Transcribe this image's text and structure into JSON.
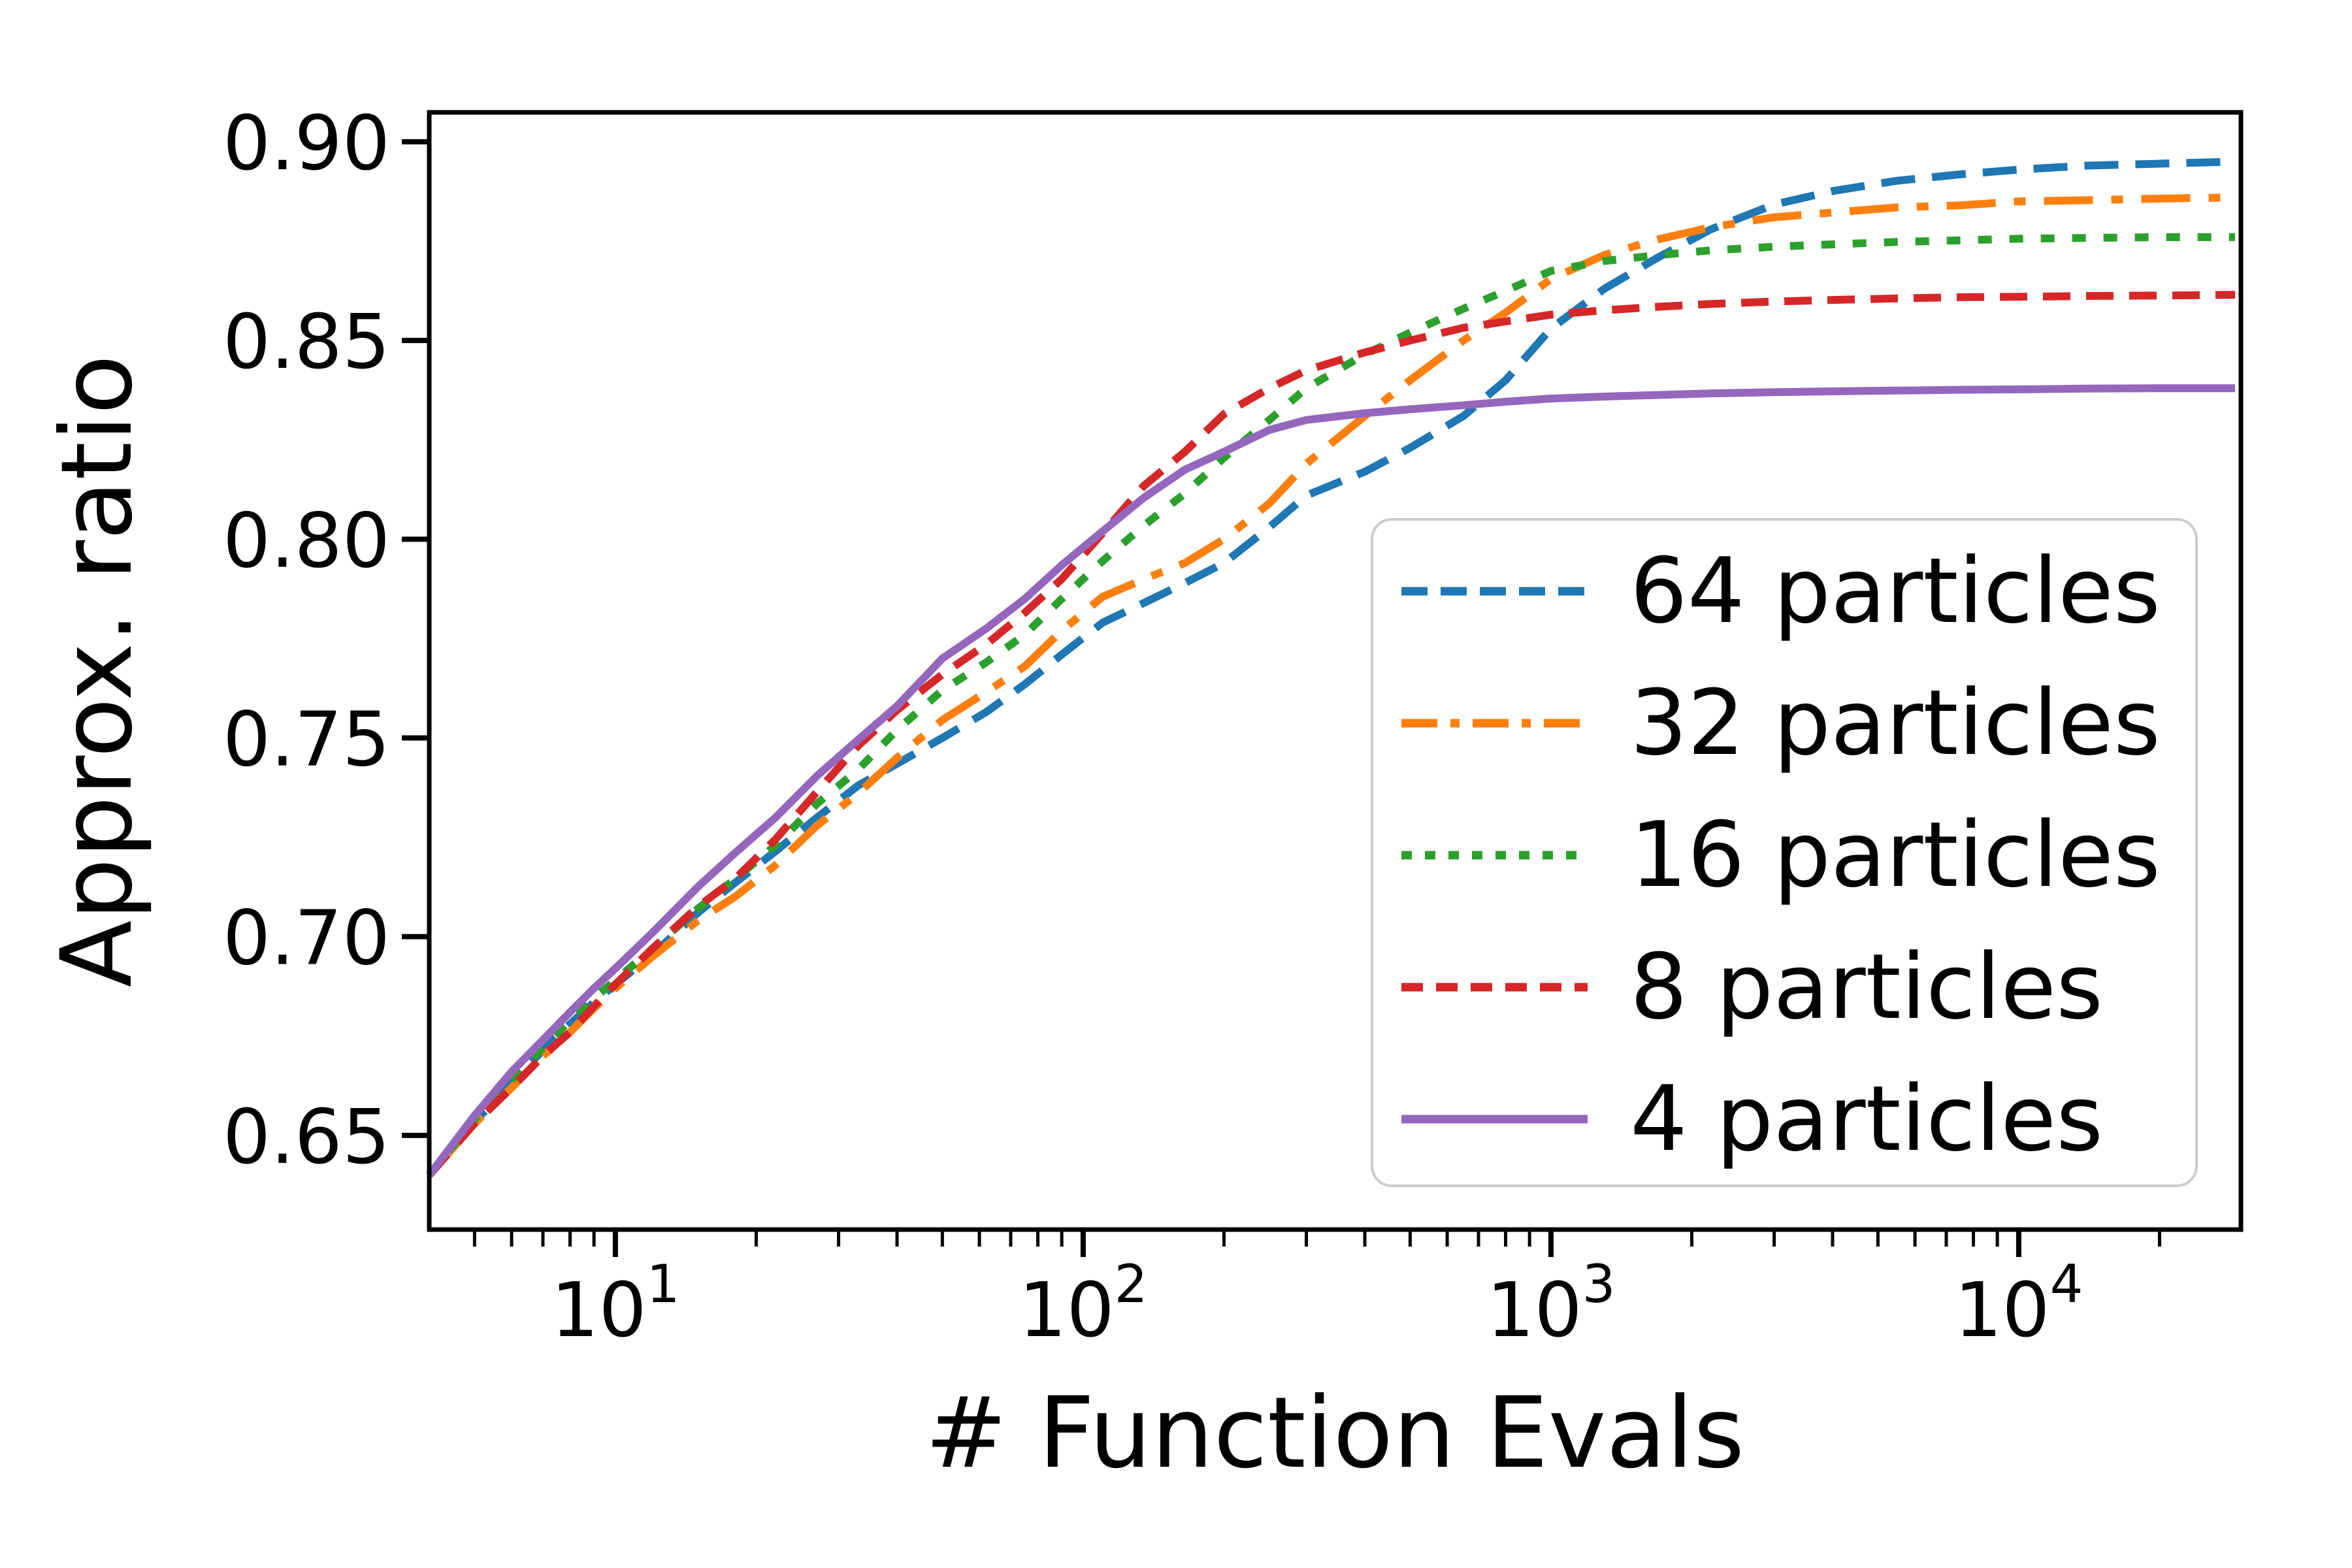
{
  "chart_data": {
    "type": "line",
    "title": "",
    "xlabel": "# Function Evals",
    "ylabel": "Approx. ratio",
    "x_scale": "log",
    "grid": false,
    "legend_position": "lower right inside",
    "xlim": [
      4,
      29854
    ],
    "ylim": [
      0.6263,
      0.9074
    ],
    "y_ticks": [
      {
        "value": 0.9,
        "label": "0.90"
      },
      {
        "value": 0.85,
        "label": "0.85"
      },
      {
        "value": 0.8,
        "label": "0.80"
      },
      {
        "value": 0.75,
        "label": "0.75"
      },
      {
        "value": 0.7,
        "label": "0.70"
      },
      {
        "value": 0.65,
        "label": "0.65"
      }
    ],
    "x_major_ticks": [
      {
        "value": 10,
        "base": "10",
        "exp": "1"
      },
      {
        "value": 100,
        "base": "10",
        "exp": "2"
      },
      {
        "value": 1000,
        "base": "10",
        "exp": "3"
      },
      {
        "value": 10000,
        "base": "10",
        "exp": "4"
      }
    ],
    "x_minor_ticks": [
      5,
      6,
      7,
      8,
      9,
      20,
      30,
      40,
      50,
      60,
      70,
      80,
      90,
      200,
      300,
      400,
      500,
      600,
      700,
      800,
      900,
      2000,
      3000,
      4000,
      5000,
      6000,
      7000,
      8000,
      9000,
      20000
    ],
    "x": [
      4,
      5,
      6,
      7,
      8,
      9,
      10,
      12,
      15,
      18,
      22,
      27,
      33,
      40,
      50,
      62,
      75,
      90,
      110,
      135,
      165,
      200,
      250,
      300,
      400,
      500,
      650,
      800,
      1000,
      1300,
      1700,
      2200,
      3000,
      4000,
      5500,
      7500,
      10000,
      14000,
      20000,
      29000
    ],
    "series": [
      {
        "name": "64 particles",
        "color": "#1f77b4",
        "style": "dashed",
        "dash": "52 26",
        "legend_dash": "40 20",
        "end_value": 0.895,
        "values": [
          0.64,
          0.6535,
          0.663,
          0.6715,
          0.678,
          0.6835,
          0.688,
          0.6955,
          0.706,
          0.7135,
          0.7215,
          0.73,
          0.738,
          0.7435,
          0.75,
          0.7565,
          0.7635,
          0.771,
          0.779,
          0.784,
          0.789,
          0.794,
          0.803,
          0.811,
          0.817,
          0.823,
          0.831,
          0.84,
          0.853,
          0.863,
          0.871,
          0.878,
          0.8842,
          0.8876,
          0.8902,
          0.8918,
          0.893,
          0.894,
          0.8945,
          0.895
        ]
      },
      {
        "name": "32 particles",
        "color": "#ff7f0e",
        "style": "dashdot",
        "dash": "75 28 18 28",
        "legend_dash": "55 20 14 20",
        "end_value": 0.886,
        "values": [
          0.64,
          0.653,
          0.662,
          0.67,
          0.676,
          0.682,
          0.687,
          0.695,
          0.704,
          0.71,
          0.718,
          0.728,
          0.736,
          0.745,
          0.7545,
          0.7615,
          0.768,
          0.777,
          0.7855,
          0.79,
          0.794,
          0.8,
          0.809,
          0.819,
          0.831,
          0.84,
          0.85,
          0.857,
          0.8655,
          0.8715,
          0.8755,
          0.8785,
          0.881,
          0.8822,
          0.8835,
          0.884,
          0.885,
          0.8853,
          0.8857,
          0.886
        ]
      },
      {
        "name": "16 particles",
        "color": "#2ca02c",
        "style": "dotted",
        "dash": "21 27",
        "legend_dash": "16 20",
        "end_value": 0.876,
        "values": [
          0.64,
          0.654,
          0.664,
          0.672,
          0.679,
          0.6845,
          0.689,
          0.697,
          0.707,
          0.7145,
          0.723,
          0.7335,
          0.742,
          0.752,
          0.762,
          0.769,
          0.776,
          0.785,
          0.7945,
          0.8035,
          0.8115,
          0.8205,
          0.83,
          0.838,
          0.8465,
          0.852,
          0.858,
          0.8625,
          0.8675,
          0.87,
          0.8715,
          0.8727,
          0.8736,
          0.8742,
          0.8748,
          0.8752,
          0.8756,
          0.8758,
          0.876,
          0.876
        ]
      },
      {
        "name": "8 particles",
        "color": "#d62728",
        "style": "dashed",
        "dash": "42 24",
        "legend_dash": "33 20",
        "end_value": 0.861,
        "values": [
          0.64,
          0.653,
          0.662,
          0.67,
          0.676,
          0.6825,
          0.688,
          0.697,
          0.7075,
          0.7145,
          0.7245,
          0.7365,
          0.748,
          0.757,
          0.766,
          0.7735,
          0.7815,
          0.79,
          0.8015,
          0.8135,
          0.822,
          0.8315,
          0.838,
          0.8425,
          0.847,
          0.85,
          0.8532,
          0.8548,
          0.8565,
          0.8576,
          0.8585,
          0.8592,
          0.8598,
          0.8602,
          0.8606,
          0.8609,
          0.861,
          0.8612,
          0.8613,
          0.8615
        ]
      },
      {
        "name": "4 particles",
        "color": "#9467bd",
        "style": "solid",
        "dash": "",
        "legend_dash": "",
        "end_value": 0.838,
        "values": [
          0.64,
          0.655,
          0.666,
          0.674,
          0.681,
          0.687,
          0.692,
          0.701,
          0.7125,
          0.721,
          0.73,
          0.7405,
          0.7495,
          0.758,
          0.77,
          0.7775,
          0.785,
          0.7935,
          0.802,
          0.8105,
          0.8175,
          0.822,
          0.8275,
          0.83,
          0.8317,
          0.8327,
          0.8337,
          0.8346,
          0.8354,
          0.8359,
          0.8363,
          0.8367,
          0.837,
          0.8372,
          0.8374,
          0.8376,
          0.8377,
          0.8379,
          0.838,
          0.838
        ]
      }
    ]
  }
}
